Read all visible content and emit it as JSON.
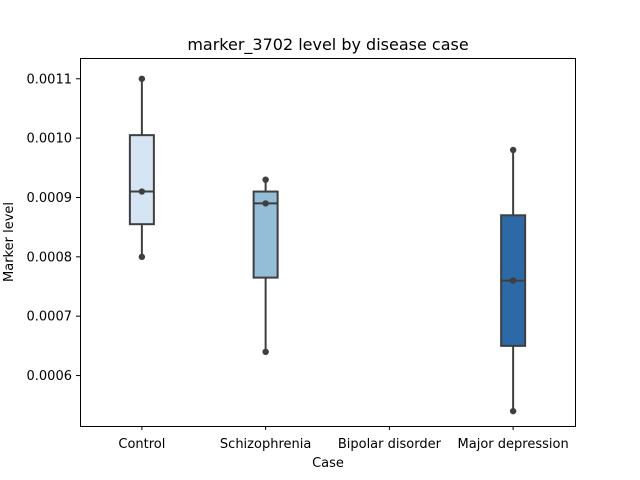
{
  "chart_data": {
    "type": "box",
    "title": "marker_3702 level by disease case",
    "xlabel": "Case",
    "ylabel": "Marker level",
    "categories": [
      "Control",
      "Schizophrenia",
      "Bipolar disorder",
      "Major depression"
    ],
    "yticks": [
      "0.0006",
      "0.0007",
      "0.0008",
      "0.0009",
      "0.0010",
      "0.0011"
    ],
    "ylim": [
      0.000515,
      0.001135
    ],
    "grid": false,
    "boxes": [
      {
        "category": "Control",
        "whisker_low": 0.0008,
        "q1": 0.000855,
        "median": 0.00091,
        "q3": 0.001005,
        "whisker_high": 0.0011,
        "points": [
          0.0008,
          0.00091,
          0.0011
        ],
        "color": "#d6e5f4"
      },
      {
        "category": "Schizophrenia",
        "whisker_low": 0.00064,
        "q1": 0.000765,
        "median": 0.00089,
        "q3": 0.00091,
        "whisker_high": 0.00093,
        "points": [
          0.00064,
          0.00089,
          0.00093
        ],
        "color": "#94bdd8"
      },
      {
        "category": "Bipolar disorder",
        "whisker_low": null,
        "q1": null,
        "median": null,
        "q3": null,
        "whisker_high": null,
        "points": [],
        "color": "#5a9fcf"
      },
      {
        "category": "Major depression",
        "whisker_low": 0.00054,
        "q1": 0.00065,
        "median": 0.00076,
        "q3": 0.00087,
        "whisker_high": 0.00098,
        "points": [
          0.00054,
          0.00076,
          0.00098
        ],
        "color": "#2c6aa7"
      }
    ]
  }
}
